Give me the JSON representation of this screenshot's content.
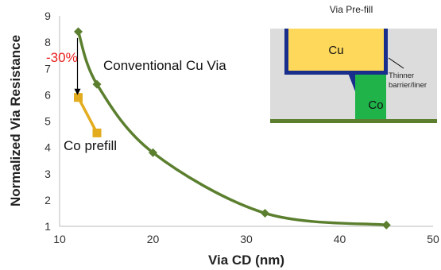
{
  "chart_data": {
    "type": "line",
    "xlabel": "Via CD (nm)",
    "ylabel": "Normalized Via Resistance",
    "xlim": [
      10,
      50
    ],
    "ylim": [
      1,
      9
    ],
    "xticks": [
      10,
      20,
      30,
      40,
      50
    ],
    "yticks": [
      1,
      2,
      3,
      4,
      5,
      6,
      7,
      8,
      9
    ],
    "grid": false,
    "series": [
      {
        "name": "Conventional Cu Via",
        "color": "#5b7f2e",
        "marker": "diamond",
        "x": [
          12,
          14,
          20,
          32,
          45
        ],
        "y": [
          8.4,
          6.4,
          3.8,
          1.5,
          1.05
        ]
      },
      {
        "name": "Co prefill",
        "color": "#e3ac1e",
        "marker": "square",
        "x": [
          12,
          14
        ],
        "y": [
          5.9,
          4.55
        ]
      }
    ],
    "annotations": [
      {
        "text": "-30%",
        "color": "#e8211e",
        "arrow_from": [
          12,
          8.4
        ],
        "arrow_to": [
          12,
          5.9
        ]
      }
    ]
  },
  "inset": {
    "title": "Via Pre-fill",
    "top_metal_label": "Cu",
    "via_label": "Co",
    "barrier_label_line1": "Thinner",
    "barrier_label_line2": "barrier/liner",
    "colors": {
      "background": "#dcdcdc",
      "cu": "#fdd85a",
      "barrier": "#1a2e8c",
      "co": "#1fb34a",
      "bottom_line": "#5b7f2e"
    }
  }
}
